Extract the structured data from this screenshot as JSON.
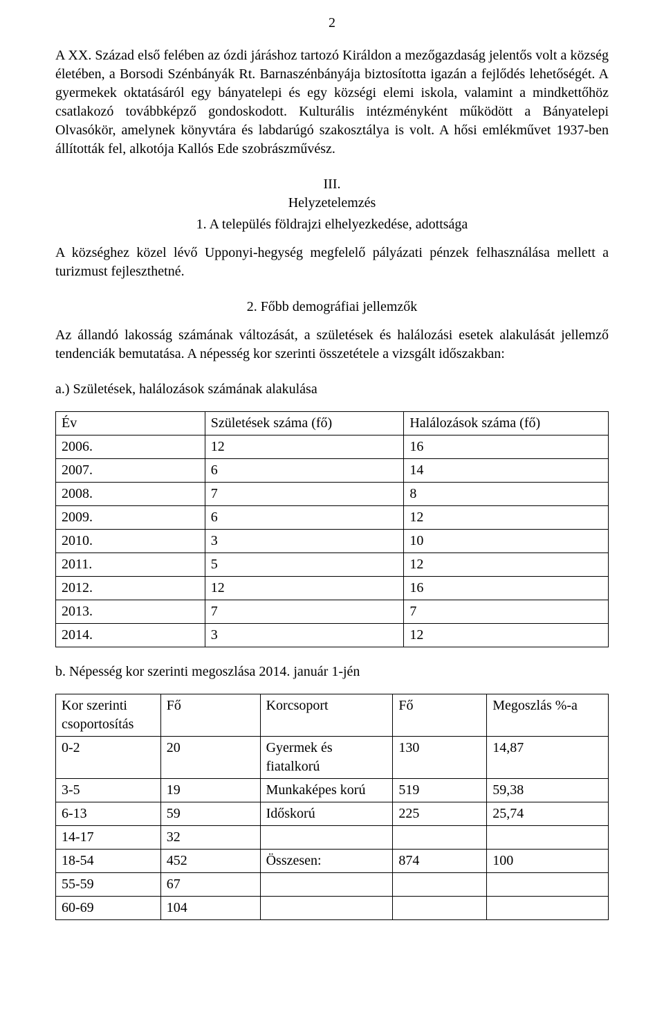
{
  "page_number": "2",
  "paragraph_1": "A XX. Század első felében az ózdi járáshoz tartozó Királdon a mezőgazdaság jelentős volt a község életében, a Borsodi Szénbányák Rt. Barnaszénbányája biztosította igazán a fejlődés lehetőségét. A gyermekek oktatásáról egy bányatelepi és egy községi elemi iskola, valamint a mindkettőhöz csatlakozó továbbképző gondoskodott. Kulturális intézményként működött a Bányatelepi Olvasókör, amelynek könyvtára és labdarúgó szakosztálya is volt. A hősi emlékművet 1937-ben állították fel, alkotója Kallós Ede szobrászművész.",
  "section3": {
    "roman": "III.",
    "title": "Helyzetelemzés",
    "item1_title": "1. A település földrajzi elhelyezkedése, adottsága",
    "item1_body": "A községhez közel lévő Upponyi-hegység megfelelő pályázati pénzek felhasználása mellett a turizmust fejleszthetné.",
    "item2_title": "2. Főbb demográfiai jellemzők",
    "item2_body": "Az állandó lakosság számának változását, a születések és halálozási esetek alakulását jellemző tendenciák bemutatása. A népesség kor szerinti összetétele a vizsgált időszakban:",
    "a_title": "a.) Születések, halálozások számának alakulása"
  },
  "table1": {
    "columns": [
      "Év",
      "Születések száma (fő)",
      "Halálozások száma (fő)"
    ],
    "rows": [
      [
        "2006.",
        "12",
        "16"
      ],
      [
        "2007.",
        "6",
        "14"
      ],
      [
        "2008.",
        "7",
        "8"
      ],
      [
        "2009.",
        "6",
        "12"
      ],
      [
        "2010.",
        "3",
        "10"
      ],
      [
        "2011.",
        "5",
        "12"
      ],
      [
        "2012.",
        "12",
        "16"
      ],
      [
        "2013.",
        "7",
        "7"
      ],
      [
        "2014.",
        "3",
        "12"
      ]
    ],
    "col_widths": [
      "27%",
      "36%",
      "37%"
    ]
  },
  "b_title": "b. Népesség kor szerinti megoszlása 2014. január 1-jén",
  "table2": {
    "columns": [
      "Kor szerinti csoportosítás",
      "Fő",
      "Korcsoport",
      "Fő",
      "Megoszlás %-a"
    ],
    "rows": [
      [
        "0-2",
        "20",
        "Gyermek és fiatalkorú",
        "130",
        "14,87"
      ],
      [
        "3-5",
        "19",
        "Munkaképes korú",
        "519",
        "59,38"
      ],
      [
        "6-13",
        "59",
        "Időskorú",
        "225",
        "25,74"
      ],
      [
        "14-17",
        "32",
        "",
        "",
        ""
      ],
      [
        "18-54",
        "452",
        "Összesen:",
        "874",
        "100"
      ],
      [
        "55-59",
        "67",
        "",
        "",
        ""
      ],
      [
        "60-69",
        "104",
        "",
        "",
        ""
      ]
    ],
    "col_widths": [
      "19%",
      "18%",
      "24%",
      "17%",
      "22%"
    ]
  }
}
